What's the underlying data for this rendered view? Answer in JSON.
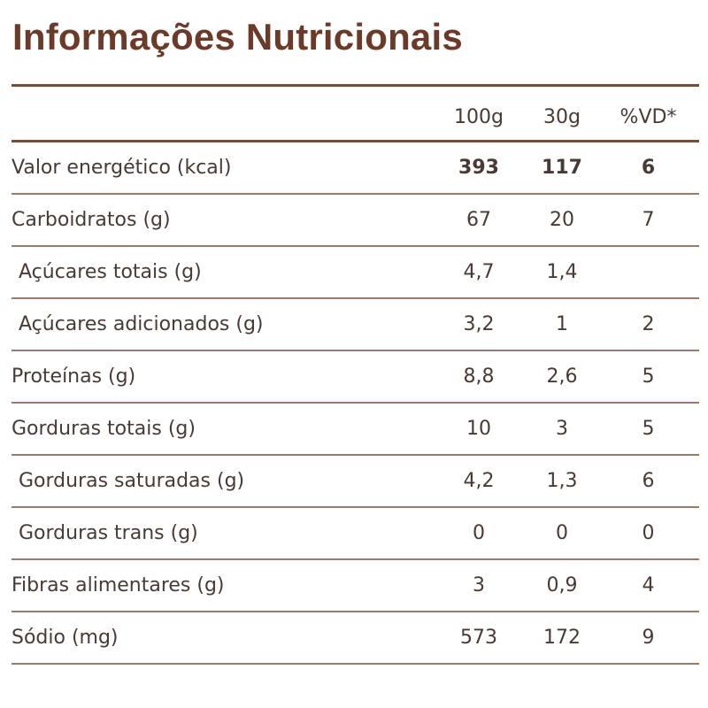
{
  "title": "Informações Nutricionais",
  "columns": [
    "100g",
    "30g",
    "%VD*"
  ],
  "rows": [
    {
      "label": "Valor energético (kcal)",
      "v100": "393",
      "v30": "117",
      "vd": "6"
    },
    {
      "label": "Carboidratos (g)",
      "v100": "67",
      "v30": "20",
      "vd": "7"
    },
    {
      "label": "Açúcares totais (g)",
      "v100": "4,7",
      "v30": "1,4",
      "vd": ""
    },
    {
      "label": "Açúcares adicionados (g)",
      "v100": "3,2",
      "v30": "1",
      "vd": "2"
    },
    {
      "label": "Proteínas (g)",
      "v100": "8,8",
      "v30": "2,6",
      "vd": "5"
    },
    {
      "label": "Gorduras totais (g)",
      "v100": "10",
      "v30": "3",
      "vd": "5"
    },
    {
      "label": "Gorduras saturadas (g)",
      "v100": "4,2",
      "v30": "1,3",
      "vd": "6"
    },
    {
      "label": "Gorduras trans (g)",
      "v100": "0",
      "v30": "0",
      "vd": "0"
    },
    {
      "label": "Fibras alimentares (g)",
      "v100": "3",
      "v30": "0,9",
      "vd": "4"
    },
    {
      "label": "Sódio (mg)",
      "v100": "573",
      "v30": "172",
      "vd": "9"
    }
  ]
}
